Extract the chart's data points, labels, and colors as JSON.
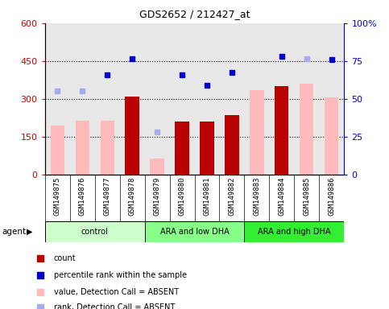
{
  "title": "GDS2652 / 212427_at",
  "samples": [
    "GSM149875",
    "GSM149876",
    "GSM149877",
    "GSM149878",
    "GSM149879",
    "GSM149880",
    "GSM149881",
    "GSM149882",
    "GSM149883",
    "GSM149884",
    "GSM149885",
    "GSM149886"
  ],
  "groups": [
    {
      "label": "control",
      "color": "#ccffcc",
      "start": 0,
      "end": 4
    },
    {
      "label": "ARA and low DHA",
      "color": "#88ff88",
      "start": 4,
      "end": 8
    },
    {
      "label": "ARA and high DHA",
      "color": "#33ee33",
      "start": 8,
      "end": 12
    }
  ],
  "bar_values": [
    null,
    null,
    null,
    310,
    null,
    210,
    210,
    235,
    null,
    350,
    null,
    null
  ],
  "pink_bar_values": [
    195,
    215,
    215,
    null,
    65,
    null,
    null,
    null,
    335,
    null,
    360,
    305
  ],
  "blue_sq_values": [
    null,
    null,
    395,
    460,
    null,
    395,
    355,
    405,
    null,
    470,
    null,
    455
  ],
  "lblue_sq_values": [
    330,
    330,
    null,
    null,
    170,
    null,
    null,
    null,
    null,
    null,
    460,
    null
  ],
  "ylim_left": [
    0,
    600
  ],
  "ylim_right": [
    0,
    100
  ],
  "yticks_left": [
    0,
    150,
    300,
    450,
    600
  ],
  "yticks_right": [
    0,
    25,
    50,
    75,
    100
  ],
  "ytick_labels_left": [
    "0",
    "150",
    "300",
    "450",
    "600"
  ],
  "ytick_labels_right": [
    "0",
    "25",
    "50",
    "75",
    "100%"
  ],
  "hlines": [
    150,
    300,
    450
  ],
  "left_axis_color": "#cc0000",
  "right_axis_color": "#0000cc",
  "bar_color_red": "#bb0000",
  "bar_color_pink": "#ffbbbb",
  "dot_color_blue": "#0000cc",
  "dot_color_lblue": "#aaaaee",
  "legend_items": [
    {
      "color": "#bb0000",
      "label": "count",
      "marker": "s"
    },
    {
      "color": "#0000cc",
      "label": "percentile rank within the sample",
      "marker": "s"
    },
    {
      "color": "#ffbbbb",
      "label": "value, Detection Call = ABSENT",
      "marker": "s"
    },
    {
      "color": "#aaaaee",
      "label": "rank, Detection Call = ABSENT",
      "marker": "s"
    }
  ],
  "plot_bg_color": "#e8e8e8"
}
